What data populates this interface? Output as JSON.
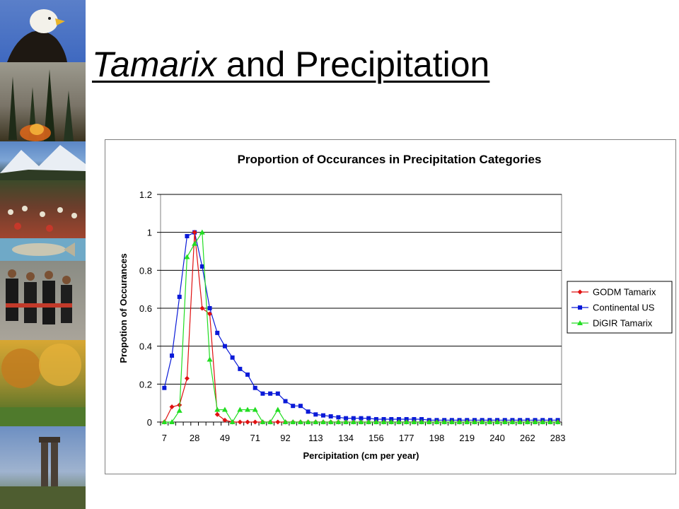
{
  "slide": {
    "title_italic": "Tamarix",
    "title_rest": " and Precipitation"
  },
  "sidebar": {
    "photos": [
      "bald-eagle",
      "forest-fire",
      "snowy-mountains",
      "wildflower-meadow",
      "trout-fish",
      "dancers",
      "autumn-trees",
      "mine-headframe"
    ]
  },
  "chart_data": {
    "type": "line",
    "title": "Proportion of Occurances in Precipitation Categories",
    "xlabel": "Percipitation (cm per year)",
    "ylabel": "Propotion of Occurances",
    "ylim": [
      0,
      1.2
    ],
    "yticks": [
      "0",
      "0.2",
      "0.4",
      "0.6",
      "0.8",
      "1",
      "1.2"
    ],
    "grid": true,
    "legend": "right",
    "x": [
      7,
      13,
      18,
      23,
      28,
      34,
      39,
      44,
      49,
      55,
      60,
      65,
      71,
      76,
      81,
      86,
      92,
      97,
      102,
      107,
      113,
      118,
      123,
      128,
      134,
      139,
      144,
      149,
      156,
      161,
      166,
      172,
      177,
      182,
      188,
      193,
      198,
      203,
      208,
      214,
      219,
      224,
      229,
      235,
      240,
      245,
      251,
      256,
      262,
      267,
      272,
      278,
      283
    ],
    "xtick_labels": [
      "7",
      "28",
      "49",
      "71",
      "92",
      "113",
      "134",
      "156",
      "177",
      "198",
      "219",
      "240",
      "262",
      "283"
    ],
    "series": [
      {
        "name": "GODM Tamarix",
        "color": "#e01010",
        "marker": "diamond",
        "values": [
          0,
          0.08,
          0.09,
          0.23,
          1.0,
          0.6,
          0.57,
          0.04,
          0.01,
          0,
          0,
          0,
          0,
          0,
          0,
          0,
          0,
          0,
          0,
          0,
          0,
          0,
          0,
          0,
          0,
          0,
          0,
          0,
          0,
          0,
          0,
          0,
          0,
          0,
          0,
          0,
          0,
          0,
          0,
          0,
          0,
          0,
          0,
          0,
          0,
          0,
          0,
          0,
          0,
          0,
          0,
          0,
          0
        ]
      },
      {
        "name": "Continental US",
        "color": "#0a1ad8",
        "marker": "square",
        "values": [
          0.18,
          0.35,
          0.66,
          0.98,
          1.0,
          0.82,
          0.6,
          0.47,
          0.4,
          0.34,
          0.28,
          0.25,
          0.18,
          0.15,
          0.15,
          0.15,
          0.11,
          0.085,
          0.085,
          0.055,
          0.04,
          0.035,
          0.03,
          0.025,
          0.02,
          0.02,
          0.02,
          0.02,
          0.015,
          0.015,
          0.015,
          0.015,
          0.015,
          0.015,
          0.015,
          0.01,
          0.01,
          0.01,
          0.01,
          0.01,
          0.01,
          0.01,
          0.01,
          0.01,
          0.01,
          0.01,
          0.01,
          0.01,
          0.01,
          0.01,
          0.01,
          0.01,
          0.01
        ]
      },
      {
        "name": "DiGIR Tamarix",
        "color": "#22dd22",
        "marker": "triangle",
        "values": [
          0,
          0,
          0.06,
          0.87,
          0.94,
          1.0,
          0.33,
          0.065,
          0.065,
          0,
          0.065,
          0.065,
          0.065,
          0,
          0,
          0.065,
          0,
          0,
          0,
          0,
          0,
          0,
          0,
          0,
          0,
          0,
          0,
          0,
          0,
          0,
          0,
          0,
          0,
          0,
          0,
          0,
          0,
          0,
          0,
          0,
          0,
          0,
          0,
          0,
          0,
          0,
          0,
          0,
          0,
          0,
          0,
          0,
          0
        ]
      }
    ]
  }
}
